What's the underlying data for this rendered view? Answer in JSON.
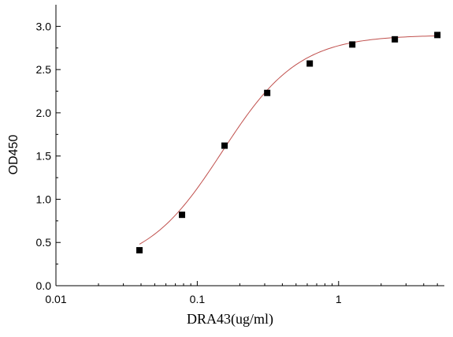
{
  "chart_data": {
    "type": "scatter",
    "title": "",
    "xlabel": "DRA43(ug/ml)",
    "ylabel": "OD450",
    "x_scale": "log",
    "xlim": [
      0.01,
      5.6
    ],
    "ylim": [
      0,
      3.25
    ],
    "x_ticks": [
      {
        "value": 0.01,
        "label": "0.01"
      },
      {
        "value": 0.1,
        "label": "0.1"
      },
      {
        "value": 1,
        "label": "1"
      }
    ],
    "y_ticks": [
      {
        "value": 0,
        "label": "0.0"
      },
      {
        "value": 0.5,
        "label": "0.5"
      },
      {
        "value": 1.0,
        "label": "1.0"
      },
      {
        "value": 1.5,
        "label": "1.5"
      },
      {
        "value": 2.0,
        "label": "2.0"
      },
      {
        "value": 2.5,
        "label": "2.5"
      },
      {
        "value": 3.0,
        "label": "3.0"
      }
    ],
    "grid": false,
    "legend": "none",
    "series": [
      {
        "marker": "square",
        "color": "#000000",
        "points": [
          {
            "x": 0.039,
            "y": 0.41
          },
          {
            "x": 0.078,
            "y": 0.82
          },
          {
            "x": 0.156,
            "y": 1.62
          },
          {
            "x": 0.3125,
            "y": 2.23
          },
          {
            "x": 0.625,
            "y": 2.57
          },
          {
            "x": 1.25,
            "y": 2.79
          },
          {
            "x": 2.5,
            "y": 2.85
          },
          {
            "x": 5.0,
            "y": 2.9
          }
        ]
      }
    ],
    "fit_curve": {
      "type": "4PL",
      "color": "#c0504d",
      "bottom": 0.2,
      "top": 2.9,
      "ec50": 0.15,
      "hill": 1.6
    }
  }
}
